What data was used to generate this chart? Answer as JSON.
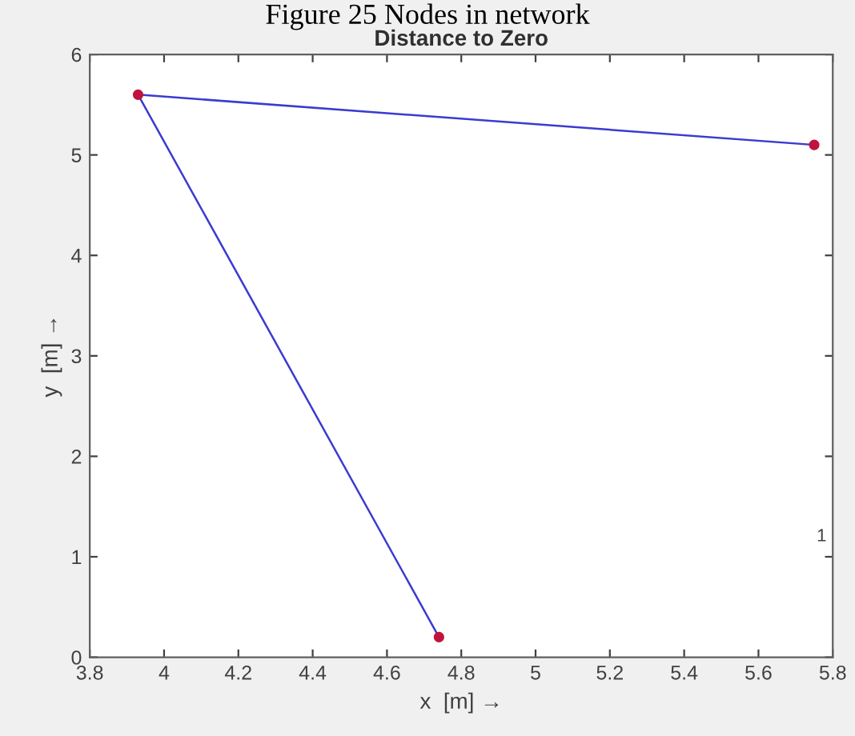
{
  "chart_data": {
    "type": "line",
    "title": "Distance to Zero",
    "xlabel": "x  [m] →",
    "ylabel": "y  [m] →",
    "annotations": [
      "Figure 25 Nodes in network",
      "1"
    ],
    "series": [
      {
        "x": [
          5.75,
          3.93,
          4.74
        ],
        "values": [
          5.1,
          5.6,
          0.2
        ],
        "color": "#3b3bd0",
        "colors": [
          "#c0143c",
          "#c0143c",
          "#c0143c"
        ]
      }
    ],
    "xlim": [
      3.8,
      5.8
    ],
    "xticks": [
      3.8,
      4,
      4.2,
      4.4,
      4.6,
      4.8,
      5,
      5.2,
      5.4,
      5.6,
      5.8
    ],
    "ylim": [
      0,
      6
    ],
    "yticks": [
      0,
      1,
      2,
      3,
      4,
      5,
      6
    ],
    "grid": false,
    "marker": "circle",
    "line_style": "solid"
  }
}
